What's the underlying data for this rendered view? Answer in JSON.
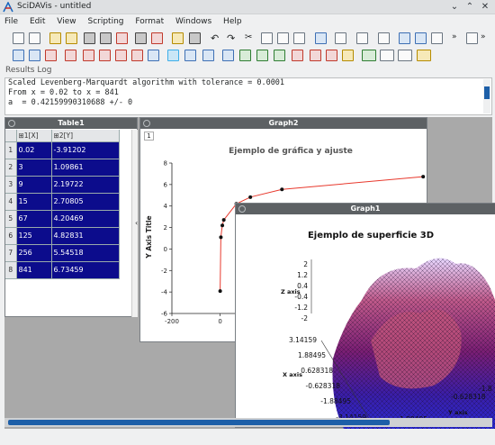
{
  "window": {
    "title": "SciDAVis - untitled"
  },
  "menu": [
    "File",
    "Edit",
    "View",
    "Scripting",
    "Format",
    "Windows",
    "Help"
  ],
  "results": {
    "label": "Results Log",
    "lines": [
      "Scaled Levenberg-Marquardt algorithm with tolerance = 0.0001",
      "From x = 0.02 to x = 841",
      "a  = 0.42159990310688 +/- 0"
    ]
  },
  "table1": {
    "title": "Table1",
    "columns": [
      "1[X]",
      "2[Y]"
    ],
    "rows": [
      [
        "1",
        "0.02",
        "-3.91202"
      ],
      [
        "2",
        "3",
        "1.09861"
      ],
      [
        "3",
        "9",
        "2.19722"
      ],
      [
        "4",
        "15",
        "2.70805"
      ],
      [
        "5",
        "67",
        "4.20469"
      ],
      [
        "6",
        "125",
        "4.82831"
      ],
      [
        "7",
        "256",
        "5.54518"
      ],
      [
        "8",
        "841",
        "6.73459"
      ]
    ]
  },
  "graph2": {
    "window_title": "Graph2",
    "layer": "1",
    "chart_data": {
      "type": "scatter",
      "title": "Ejemplo de gráfica y ajuste",
      "ylabel": "Y Axis Title",
      "x": [
        0.02,
        3,
        9,
        15,
        67,
        125,
        256,
        841
      ],
      "y": [
        -3.91202,
        1.09861,
        2.19722,
        2.70805,
        4.20469,
        4.82831,
        5.54518,
        6.73459
      ],
      "xlim": [
        -200,
        900
      ],
      "ylim": [
        -6,
        8
      ],
      "xticks": [
        "-200",
        "0"
      ],
      "yticks": [
        "-6",
        "-4",
        "-2",
        "0",
        "2",
        "4",
        "6",
        "8"
      ],
      "fit_color": "#e8392d",
      "point_color": "#111111"
    }
  },
  "graph1": {
    "window_title": "Graph1",
    "title": "Ejemplo de superficie 3D",
    "zlabel": "Z axis",
    "xlabel": "X axis",
    "ylabel": "Y axis",
    "zticks": [
      "2",
      "1.2",
      "0.4",
      "-0.4",
      "-1.2",
      "-2"
    ],
    "xticks": [
      "3.14159",
      "1.88495",
      "0.628318",
      "-0.628318",
      "-1.88495",
      "-3.14159"
    ],
    "yticks": [
      "-0.628318",
      "1.88495",
      "-1.8"
    ]
  }
}
